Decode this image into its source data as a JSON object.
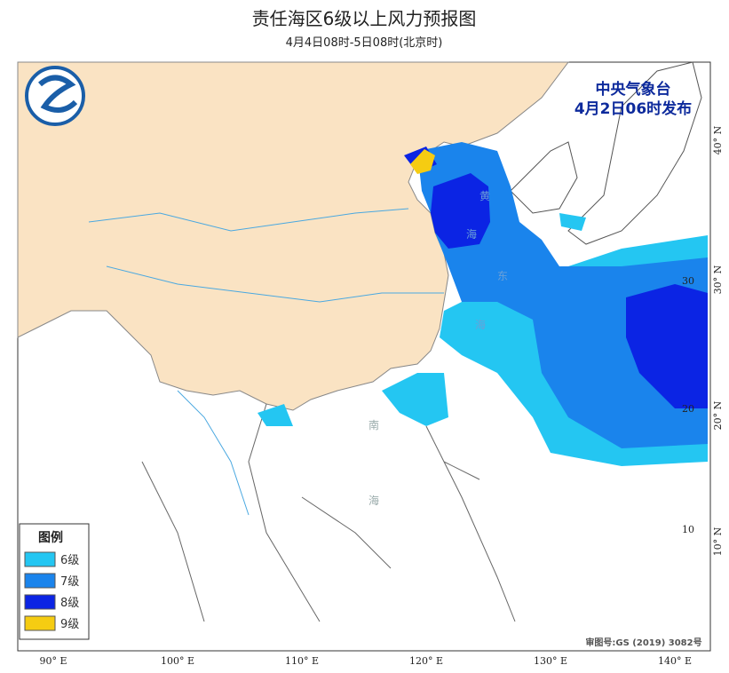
{
  "header": {
    "title": "责任海区6级以上风力预报图",
    "subtitle": "4月4日08时-5日08时(北京时)"
  },
  "issuer": {
    "agency": "中央气象台",
    "issued": "4月2日06时发布"
  },
  "legend": {
    "title": "图例",
    "items": [
      {
        "label": "6级",
        "color": "#24c6f2"
      },
      {
        "label": "7级",
        "color": "#1a84ec"
      },
      {
        "label": "8级",
        "color": "#0b24e4"
      },
      {
        "label": "9级",
        "color": "#f5cc12"
      }
    ]
  },
  "longitudes": [
    "90° E",
    "100° E",
    "110° E",
    "120° E",
    "130° E",
    "140° E"
  ],
  "latitudes": [
    "40° N",
    "30° N",
    "20° N",
    "10° N"
  ],
  "grid_labels": [
    "30",
    "20",
    "10"
  ],
  "sea_labels": [
    "黄",
    "海",
    "东",
    "海",
    "南",
    "海"
  ],
  "footer": {
    "review": "审图号:GS (2019) 3082号"
  }
}
